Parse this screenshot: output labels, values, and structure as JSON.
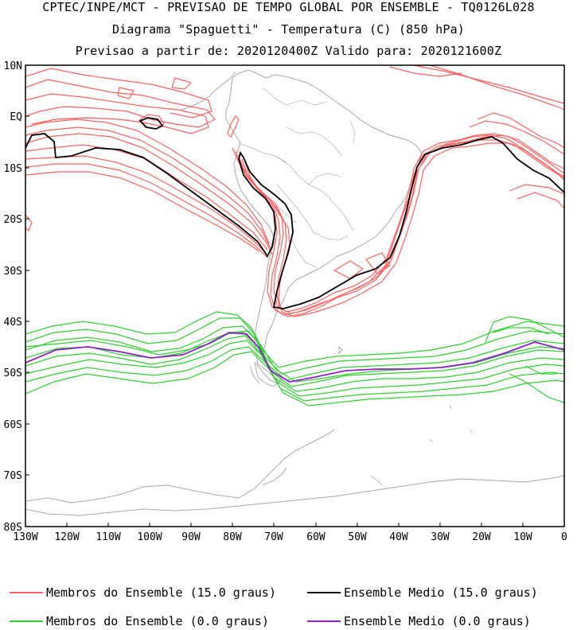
{
  "header": {
    "line1": "CPTEC/INPE/MCT - PREVISAO DE TEMPO GLOBAL POR ENSEMBLE - TQ0126L028",
    "line2": "Diagrama \"Spaguetti\" - Temperatura (C) (850 hPa)",
    "line3": "Previsao a partir de: 2020120400Z  Valido para: 2020121600Z"
  },
  "axes": {
    "lat_labels": [
      "10N",
      "EQ",
      "10S",
      "20S",
      "30S",
      "40S",
      "50S",
      "60S",
      "70S",
      "80S"
    ],
    "lon_labels": [
      "130W",
      "120W",
      "110W",
      "100W",
      "90W",
      "80W",
      "70W",
      "60W",
      "50W",
      "40W",
      "30W",
      "20W",
      "10W",
      "0"
    ]
  },
  "legend": [
    {
      "label": "Membros do Ensemble (15.0 graus)",
      "color": "#ff6060"
    },
    {
      "label": "Ensemble Medio (15.0 graus)",
      "color": "#000000"
    },
    {
      "label": "Membros do Ensemble (0.0 graus)",
      "color": "#30d030"
    },
    {
      "label": "Ensemble Medio (0.0 graus)",
      "color": "#9020d0"
    }
  ],
  "colors": {
    "member_15": "#ff6060",
    "mean_15": "#000000",
    "member_0": "#30d030",
    "mean_0": "#9020d0",
    "coast": "#a8a8a8"
  }
}
